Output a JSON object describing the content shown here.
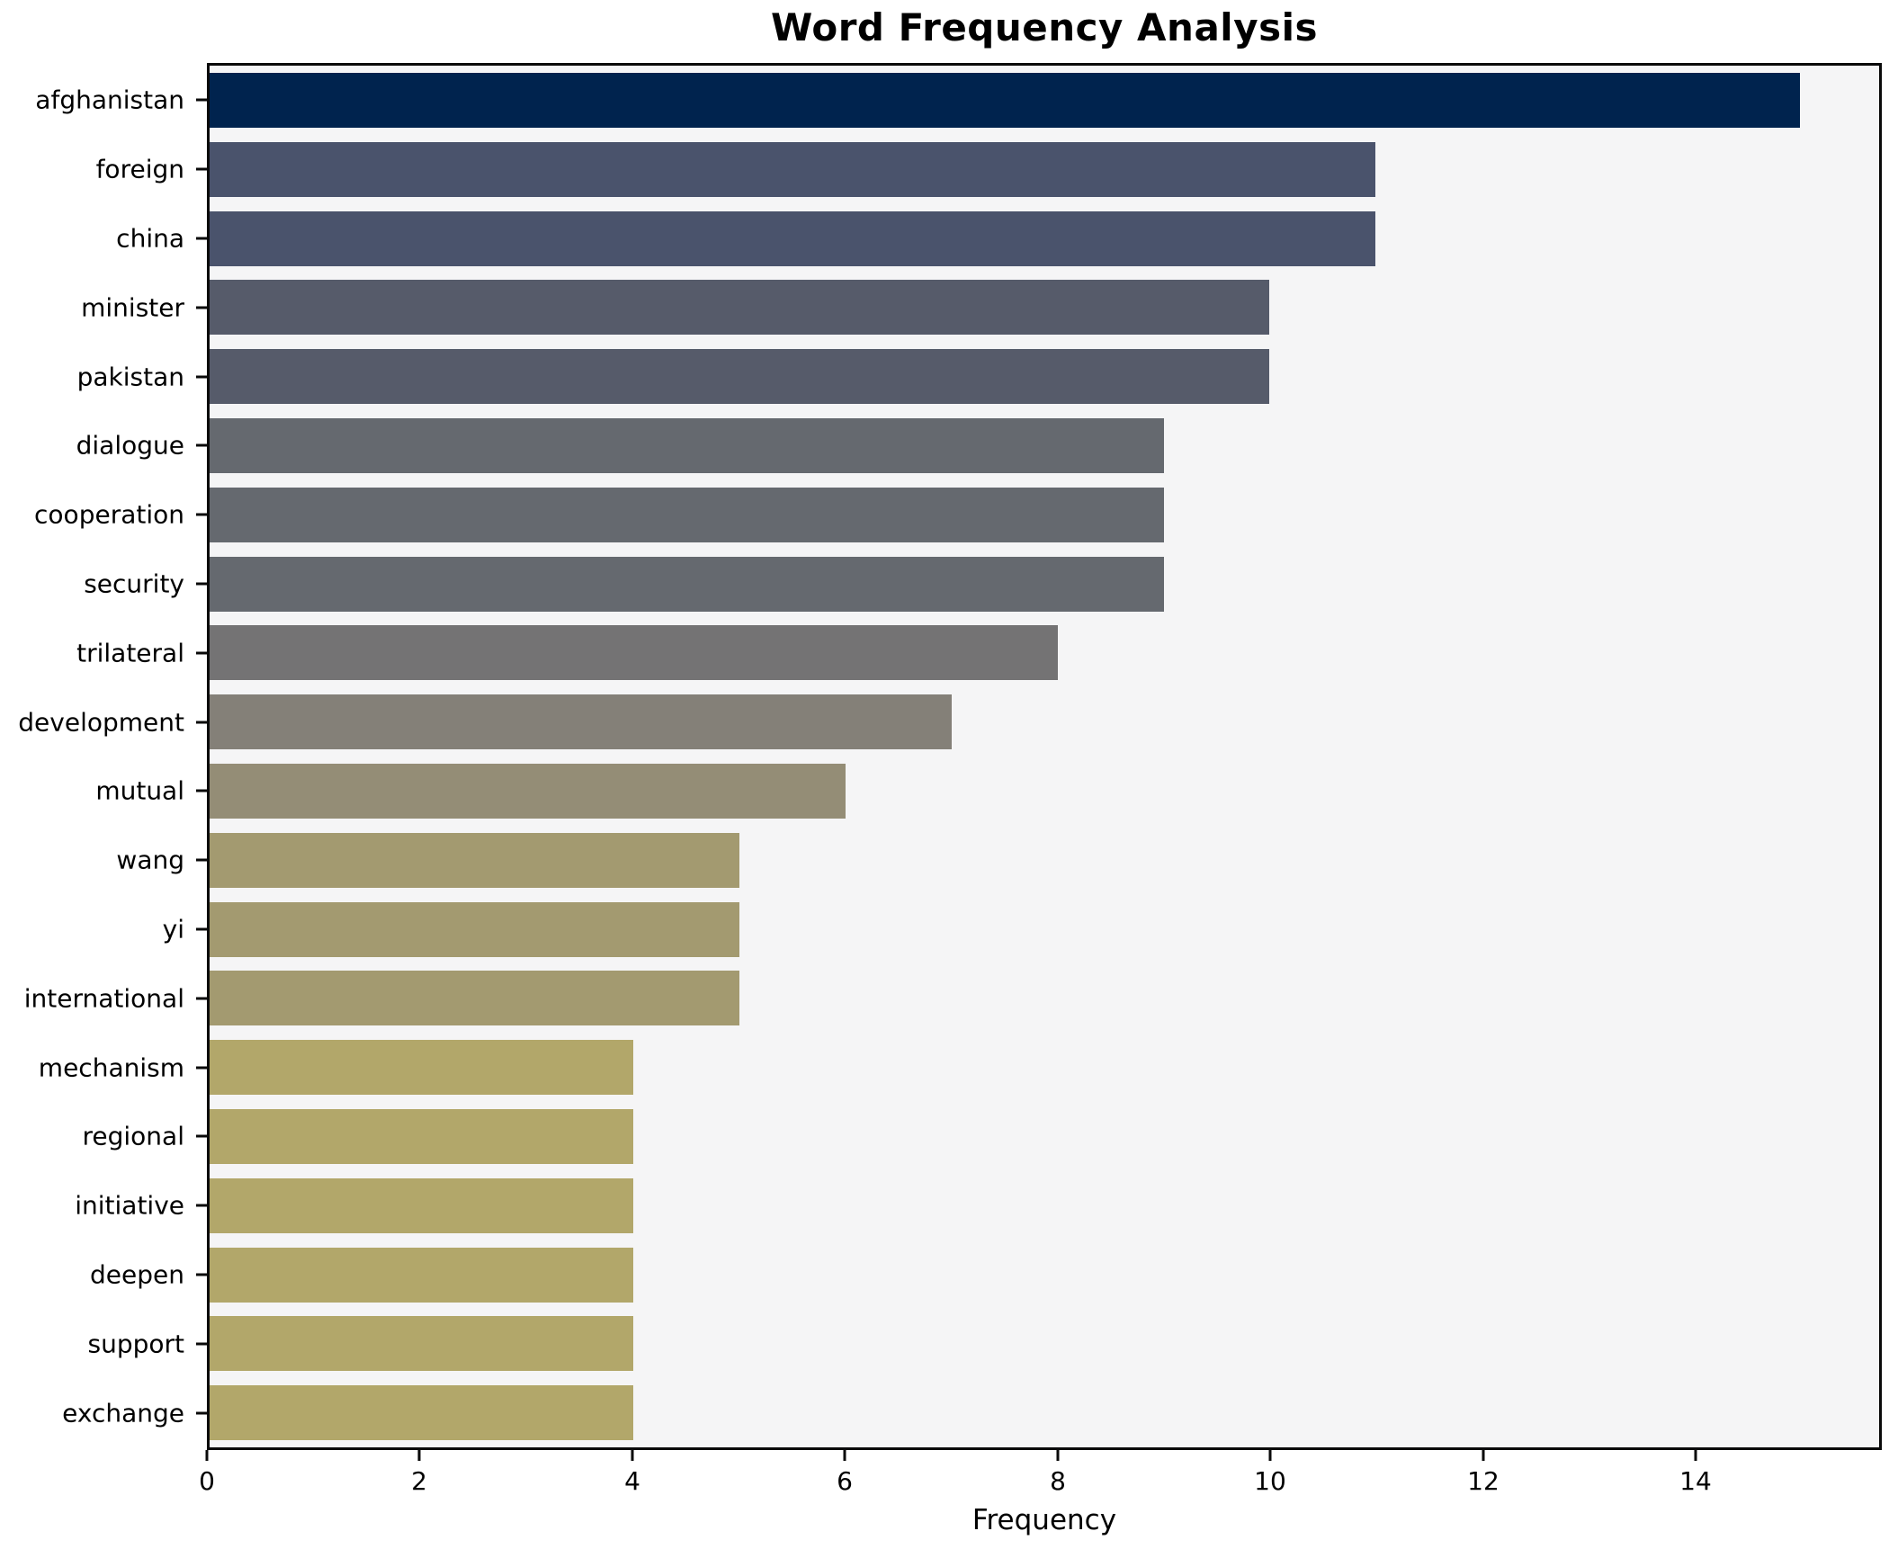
{
  "chart_data": {
    "type": "bar",
    "orientation": "horizontal",
    "title": "Word Frequency Analysis",
    "xlabel": "Frequency",
    "ylabel": "",
    "categories": [
      "afghanistan",
      "foreign",
      "china",
      "minister",
      "pakistan",
      "dialogue",
      "cooperation",
      "security",
      "trilateral",
      "development",
      "mutual",
      "wang",
      "yi",
      "international",
      "mechanism",
      "regional",
      "initiative",
      "deepen",
      "support",
      "exchange"
    ],
    "values": [
      15,
      11,
      11,
      10,
      10,
      9,
      9,
      9,
      8,
      7,
      6,
      5,
      5,
      5,
      4,
      4,
      4,
      4,
      4,
      4
    ],
    "bar_colors": [
      "#00234e",
      "#4a536c",
      "#4a536c",
      "#565b6a",
      "#565b6a",
      "#65696f",
      "#65696f",
      "#65696f",
      "#747374",
      "#848078",
      "#948d76",
      "#a39a70",
      "#a39a70",
      "#a39a70",
      "#b2a76a",
      "#b2a76a",
      "#b2a76a",
      "#b2a76a",
      "#b2a76a",
      "#b2a76a"
    ],
    "xlim": [
      0,
      15.75
    ],
    "x_ticks": [
      0,
      2,
      4,
      6,
      8,
      10,
      12,
      14
    ],
    "grid": false,
    "legend": "none",
    "plot_bg_color": "#f5f5f6",
    "figure_bg_color": "#ffffff",
    "spine_color": "#0a0a0a",
    "bar_rel_height": 0.8
  }
}
